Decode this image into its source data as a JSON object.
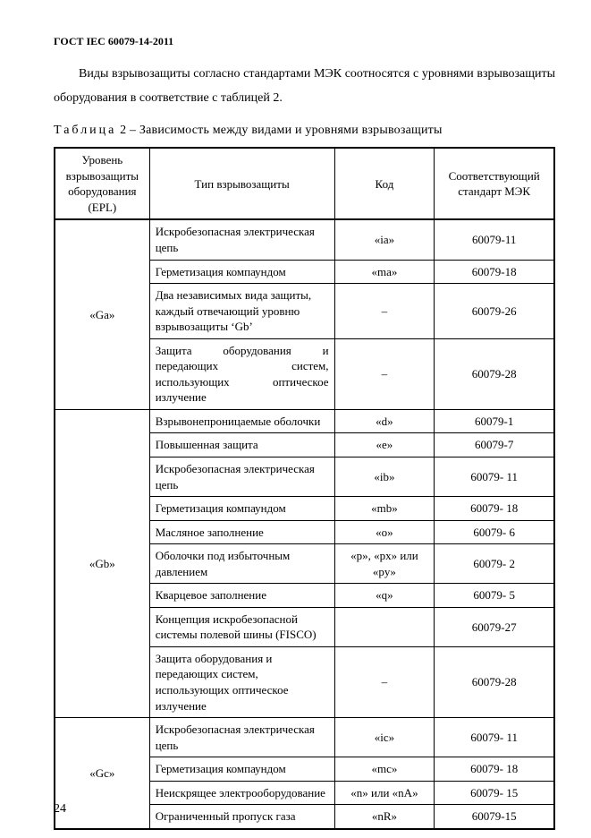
{
  "header": "ГОСТ IEC 60079-14-2011",
  "paragraph": "Виды взрывозащиты согласно стандартами МЭК соотносятся с уровнями взрывозащиты оборудования в соответствие с таблицей 2.",
  "table_caption_prefix": "Таблица",
  "table_caption_rest": " 2 – Зависимость между видами и уровнями взрывозащиты",
  "columns": {
    "epl": "Уровень взрывозащиты оборудования (EPL)",
    "type": "Тип взрывозащиты",
    "code": "Код",
    "std": "Соответствующий стандарт МЭК"
  },
  "groups": [
    {
      "epl": "«Ga»",
      "rows": [
        {
          "type": "Искробезопасная электрическая цепь",
          "code": "«ia»",
          "std": "60079-11",
          "justify": false
        },
        {
          "type": "Герметизация компаундом",
          "code": "«ma»",
          "std": "60079-18",
          "justify": false
        },
        {
          "type": "Два независимых вида защиты, каждый отвечающий уровню взрывозащиты ‘Gb’",
          "code": "–",
          "std": "60079-26",
          "justify": false
        },
        {
          "type": "Защита оборудования и передающих систем, использующих оптическое излучение",
          "code": "–",
          "std": "60079-28",
          "justify": true
        }
      ]
    },
    {
      "epl": "«Gb»",
      "rows": [
        {
          "type": "Взрывонепроницаемые оболочки",
          "code": "«d»",
          "std": "60079-1",
          "justify": false
        },
        {
          "type": "Повышенная защита",
          "code": "«e»",
          "std": "60079-7",
          "justify": false
        },
        {
          "type": "Искробезопасная электрическая цепь",
          "code": "«ib»",
          "std": "60079- 11",
          "justify": false
        },
        {
          "type": "Герметизация компаундом",
          "code": "«mb»",
          "std": "60079- 18",
          "justify": false
        },
        {
          "type": "Масляное заполнение",
          "code": "«o»",
          "std": "60079- 6",
          "justify": false
        },
        {
          "type": "Оболочки под избыточным давлением",
          "code": "«p», «px» или «py»",
          "std": "60079- 2",
          "justify": false
        },
        {
          "type": "Кварцевое заполнение",
          "code": "«q»",
          "std": "60079- 5",
          "justify": false
        },
        {
          "type": "Концепция искробезопасной системы полевой шины (FISCO)",
          "code": "",
          "std": "60079-27",
          "justify": false
        },
        {
          "type": "Защита оборудования и передающих систем, использующих оптическое излучение",
          "code": "–",
          "std": "60079-28",
          "justify": false
        }
      ]
    },
    {
      "epl": "«Gc»",
      "rows": [
        {
          "type": "Искробезопасная электрическая цепь",
          "code": "«ic»",
          "std": "60079- 11",
          "justify": false
        },
        {
          "type": "Герметизация компаундом",
          "code": "«mc»",
          "std": "60079- 18",
          "justify": false
        },
        {
          "type": "Неискрящее электрооборудование",
          "code": "«n» или «nA»",
          "std": "60079- 15",
          "justify": false
        },
        {
          "type": "Ограниченный пропуск газа",
          "code": "«nR»",
          "std": "60079-15",
          "justify": false
        }
      ]
    }
  ],
  "page_number": "24"
}
